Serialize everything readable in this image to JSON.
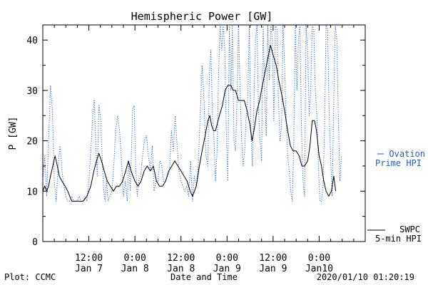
{
  "chart_data": {
    "type": "line",
    "title": "Hemispheric Power [GW]",
    "xlabel": "Date and Time",
    "ylabel": "P [GW]",
    "ylim": [
      0,
      43
    ],
    "yticks": [
      0,
      10,
      20,
      30,
      40
    ],
    "xlim_hours": [
      0,
      84
    ],
    "xticks": [
      {
        "hour": 12,
        "time": "12:00",
        "date": "Jan 7"
      },
      {
        "hour": 24,
        "time": "0:00",
        "date": "Jan 8"
      },
      {
        "hour": 36,
        "time": "12:00",
        "date": "Jan 8"
      },
      {
        "hour": 48,
        "time": "0:00",
        "date": "Jan 9"
      },
      {
        "hour": 60,
        "time": "12:00",
        "date": "Jan 9"
      },
      {
        "hour": 72,
        "time": "0:00",
        "date": "Jan10"
      }
    ],
    "grid": false,
    "series": [
      {
        "name": "SWPC 5-min HPI",
        "style": "solid",
        "color": "#000000",
        "points": [
          [
            0,
            10
          ],
          [
            0.5,
            11
          ],
          [
            1,
            10
          ],
          [
            1.5,
            11
          ],
          [
            2,
            13
          ],
          [
            2.6,
            15
          ],
          [
            3.2,
            17
          ],
          [
            3.8,
            15
          ],
          [
            4.3,
            13
          ],
          [
            5,
            12
          ],
          [
            5.8,
            11
          ],
          [
            6.5,
            10
          ],
          [
            7,
            9
          ],
          [
            7.6,
            8
          ],
          [
            8.5,
            8
          ],
          [
            9.5,
            8
          ],
          [
            10.5,
            8
          ],
          [
            11.5,
            9
          ],
          [
            12.5,
            11
          ],
          [
            13.3,
            14
          ],
          [
            14,
            16
          ],
          [
            14.6,
            17.5
          ],
          [
            15.3,
            16
          ],
          [
            16,
            14
          ],
          [
            16.8,
            12
          ],
          [
            17.6,
            11
          ],
          [
            18.4,
            10
          ],
          [
            19.2,
            11
          ],
          [
            20,
            11
          ],
          [
            20.8,
            12
          ],
          [
            21.6,
            14
          ],
          [
            22.3,
            16
          ],
          [
            23,
            14
          ],
          [
            24,
            12
          ],
          [
            24.8,
            11
          ],
          [
            25.6,
            12
          ],
          [
            26.4,
            14
          ],
          [
            27.2,
            15
          ],
          [
            28,
            14
          ],
          [
            28.8,
            15
          ],
          [
            29.6,
            12
          ],
          [
            30.4,
            11
          ],
          [
            31.2,
            11
          ],
          [
            32,
            12
          ],
          [
            32.8,
            14
          ],
          [
            33.6,
            15
          ],
          [
            34.4,
            16
          ],
          [
            35.2,
            15
          ],
          [
            36,
            14
          ],
          [
            36.8,
            13
          ],
          [
            37.6,
            12
          ],
          [
            38.4,
            10
          ],
          [
            39,
            9
          ],
          [
            39.5,
            10
          ],
          [
            40,
            11
          ],
          [
            40.8,
            15
          ],
          [
            41.5,
            18
          ],
          [
            42.3,
            21
          ],
          [
            43,
            24
          ],
          [
            43.5,
            25
          ],
          [
            44,
            23
          ],
          [
            44.5,
            22
          ],
          [
            45,
            22
          ],
          [
            46,
            25
          ],
          [
            46.8,
            27
          ],
          [
            47.5,
            30
          ],
          [
            48.2,
            31
          ],
          [
            49,
            31
          ],
          [
            49.6,
            30
          ],
          [
            50.2,
            30
          ],
          [
            51,
            28
          ],
          [
            51.8,
            28
          ],
          [
            52.5,
            28
          ],
          [
            53.2,
            26
          ],
          [
            54,
            23
          ],
          [
            54.5,
            20
          ],
          [
            55,
            22
          ],
          [
            55.8,
            26
          ],
          [
            56.5,
            28
          ],
          [
            57.2,
            31
          ],
          [
            58,
            34
          ],
          [
            58.8,
            37
          ],
          [
            59.3,
            39
          ],
          [
            60,
            37
          ],
          [
            60.8,
            35
          ],
          [
            61.5,
            32
          ],
          [
            62.3,
            29
          ],
          [
            63,
            26
          ],
          [
            63.8,
            22
          ],
          [
            64.5,
            19
          ],
          [
            65.2,
            18
          ],
          [
            66,
            18
          ],
          [
            66.8,
            17
          ],
          [
            67.5,
            15
          ],
          [
            68.2,
            15
          ],
          [
            69,
            16
          ],
          [
            69.6,
            19
          ],
          [
            70.2,
            24
          ],
          [
            70.8,
            24
          ],
          [
            71.3,
            22
          ],
          [
            72,
            17
          ],
          [
            72.6,
            15
          ],
          [
            73.2,
            12
          ],
          [
            73.8,
            10
          ],
          [
            74.5,
            9
          ],
          [
            75.2,
            10
          ],
          [
            75.8,
            13
          ],
          [
            76.3,
            10
          ]
        ]
      },
      {
        "name": "Ovation Prime HPI",
        "style": "dotted",
        "color": "#1f5fbf",
        "points": [
          [
            0,
            12
          ],
          [
            0.5,
            17
          ],
          [
            1,
            9
          ],
          [
            1.5,
            20
          ],
          [
            2,
            31
          ],
          [
            2.5,
            26
          ],
          [
            3,
            12
          ],
          [
            3.5,
            8
          ],
          [
            4,
            15
          ],
          [
            4.5,
            19
          ],
          [
            5,
            14
          ],
          [
            5.5,
            11
          ],
          [
            6,
            9
          ],
          [
            6.5,
            8
          ],
          [
            7,
            8
          ],
          [
            7.5,
            9
          ],
          [
            8,
            8
          ],
          [
            8.5,
            8
          ],
          [
            9,
            8
          ],
          [
            9.5,
            9
          ],
          [
            10,
            8
          ],
          [
            10.5,
            8
          ],
          [
            11,
            9
          ],
          [
            11.5,
            8
          ],
          [
            12,
            12
          ],
          [
            12.5,
            18
          ],
          [
            13,
            25
          ],
          [
            13.4,
            28
          ],
          [
            13.8,
            19
          ],
          [
            14.2,
            13
          ],
          [
            14.6,
            27
          ],
          [
            15,
            25
          ],
          [
            15.4,
            18
          ],
          [
            15.8,
            11
          ],
          [
            16.2,
            8
          ],
          [
            16.6,
            12
          ],
          [
            17,
            8
          ],
          [
            17.5,
            9
          ],
          [
            18,
            10
          ],
          [
            18.5,
            15
          ],
          [
            19,
            22
          ],
          [
            19.5,
            25
          ],
          [
            20,
            22
          ],
          [
            20.5,
            16
          ],
          [
            21,
            9
          ],
          [
            21.5,
            12
          ],
          [
            22,
            8
          ],
          [
            22.4,
            16
          ],
          [
            22.8,
            10
          ],
          [
            23.4,
            26
          ],
          [
            23.8,
            27
          ],
          [
            24.2,
            15
          ],
          [
            24.6,
            9
          ],
          [
            25,
            12
          ],
          [
            25.5,
            13
          ],
          [
            26,
            17
          ],
          [
            26.5,
            20
          ],
          [
            27,
            21
          ],
          [
            27.5,
            17
          ],
          [
            28,
            14
          ],
          [
            28.5,
            19
          ],
          [
            29,
            10
          ],
          [
            29.5,
            12
          ],
          [
            30,
            12
          ],
          [
            30.5,
            16
          ],
          [
            31,
            15
          ],
          [
            31.5,
            12
          ],
          [
            32,
            12
          ],
          [
            32.5,
            13
          ],
          [
            33,
            14
          ],
          [
            33.5,
            22
          ],
          [
            34,
            18
          ],
          [
            34.5,
            25
          ],
          [
            35,
            19
          ],
          [
            35.5,
            14
          ],
          [
            36,
            12
          ],
          [
            36.5,
            11
          ],
          [
            37,
            10
          ],
          [
            37.5,
            11
          ],
          [
            38,
            9
          ],
          [
            38.5,
            16
          ],
          [
            39,
            8
          ],
          [
            39.5,
            13
          ],
          [
            40,
            11
          ],
          [
            40.5,
            15
          ],
          [
            41,
            25
          ],
          [
            41.5,
            35
          ],
          [
            42,
            28
          ],
          [
            42.5,
            17
          ],
          [
            43,
            15
          ],
          [
            43.4,
            33
          ],
          [
            43.8,
            38
          ],
          [
            44.2,
            25
          ],
          [
            44.6,
            20
          ],
          [
            45,
            12
          ],
          [
            45.4,
            18
          ],
          [
            45.8,
            33
          ],
          [
            46.2,
            43
          ],
          [
            46.6,
            38
          ],
          [
            47,
            43
          ],
          [
            47.4,
            38
          ],
          [
            47.8,
            22
          ],
          [
            48.2,
            12
          ],
          [
            48.6,
            43
          ],
          [
            49,
            30
          ],
          [
            49.4,
            43
          ],
          [
            49.8,
            20
          ],
          [
            50.2,
            18
          ],
          [
            50.6,
            28
          ],
          [
            51,
            43
          ],
          [
            51.4,
            30
          ],
          [
            51.8,
            20
          ],
          [
            52.2,
            15
          ],
          [
            52.6,
            18
          ],
          [
            53,
            25
          ],
          [
            53.4,
            28
          ],
          [
            53.8,
            43
          ],
          [
            54.2,
            22
          ],
          [
            54.6,
            15
          ],
          [
            55,
            28
          ],
          [
            55.4,
            40
          ],
          [
            55.8,
            43
          ],
          [
            56.2,
            26
          ],
          [
            56.6,
            20
          ],
          [
            57,
            16
          ],
          [
            57.4,
            43
          ],
          [
            57.8,
            30
          ],
          [
            58.2,
            21
          ],
          [
            58.6,
            43
          ],
          [
            59,
            32
          ],
          [
            59.4,
            43
          ],
          [
            59.8,
            40
          ],
          [
            60.2,
            24
          ],
          [
            60.6,
            43
          ],
          [
            61,
            42
          ],
          [
            61.4,
            28
          ],
          [
            61.8,
            20
          ],
          [
            62.2,
            23
          ],
          [
            62.6,
            43
          ],
          [
            63,
            35
          ],
          [
            63.4,
            24
          ],
          [
            63.8,
            17
          ],
          [
            64.2,
            14
          ],
          [
            64.6,
            10
          ],
          [
            65,
            8
          ],
          [
            65.4,
            20
          ],
          [
            65.8,
            43
          ],
          [
            66.2,
            30
          ],
          [
            66.6,
            40
          ],
          [
            67,
            43
          ],
          [
            67.4,
            22
          ],
          [
            67.8,
            12
          ],
          [
            68.2,
            9
          ],
          [
            68.6,
            43
          ],
          [
            69,
            38
          ],
          [
            69.4,
            25
          ],
          [
            69.8,
            30
          ],
          [
            70.2,
            43
          ],
          [
            70.6,
            42
          ],
          [
            71,
            30
          ],
          [
            71.4,
            25
          ],
          [
            71.8,
            15
          ],
          [
            72.2,
            8
          ],
          [
            72.6,
            8
          ],
          [
            73,
            11
          ],
          [
            73.4,
            22
          ],
          [
            73.8,
            43
          ],
          [
            74.2,
            42
          ],
          [
            74.6,
            26
          ],
          [
            75,
            16
          ],
          [
            75.4,
            9
          ],
          [
            75.8,
            28
          ],
          [
            76.2,
            43
          ],
          [
            76.6,
            40
          ],
          [
            77,
            25
          ],
          [
            77.4,
            12
          ],
          [
            77.8,
            17
          ]
        ]
      }
    ]
  },
  "footer": {
    "plot_credit": "Plot: CCMC",
    "timestamp": "2020/01/10 01:20:19"
  },
  "legend": {
    "ovation_line1": "Ovation",
    "ovation_line2": "Prime HPI",
    "swpc_line1": "SWPC",
    "swpc_line2": "5-min HPI"
  },
  "colors": {
    "ovation": "#1f5fbf",
    "swpc": "#000000"
  }
}
